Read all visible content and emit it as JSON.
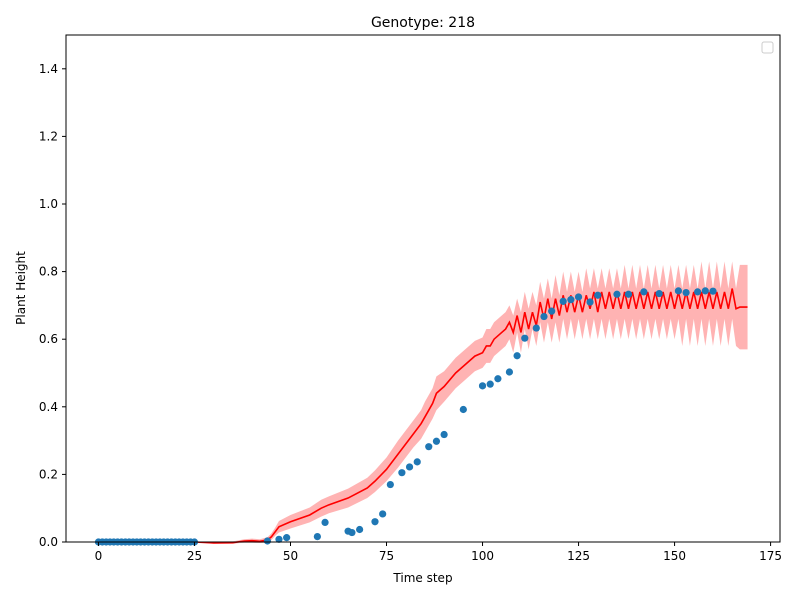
{
  "chart_data": {
    "type": "line",
    "title": "Genotype: 218",
    "xlabel": "Time step",
    "ylabel": "Plant Height",
    "xlim": [
      -8.45,
      177.45
    ],
    "ylim": [
      0,
      1.5
    ],
    "xticks": [
      0,
      25,
      50,
      75,
      100,
      125,
      150,
      175
    ],
    "yticks": [
      0.0,
      0.2,
      0.4,
      0.6,
      0.8,
      1.0,
      1.2,
      1.4
    ],
    "xtick_labels": [
      "0",
      "25",
      "50",
      "75",
      "100",
      "125",
      "150",
      "175"
    ],
    "ytick_labels": [
      "0.0",
      "0.2",
      "0.4",
      "0.6",
      "0.8",
      "1.0",
      "1.2",
      "1.4"
    ],
    "grid": false,
    "legend": {
      "placement": "top-right",
      "entries": []
    },
    "colors": {
      "observed": "#1f77b4",
      "prediction": "#ff0000",
      "band": "#ff9999"
    },
    "observed": {
      "x": [
        0,
        1,
        2,
        3,
        4,
        5,
        6,
        7,
        8,
        9,
        10,
        11,
        12,
        13,
        14,
        15,
        16,
        17,
        18,
        19,
        20,
        21,
        22,
        23,
        24,
        25,
        44,
        47,
        49,
        57,
        59,
        65,
        66,
        68,
        72,
        74,
        76,
        79,
        81,
        83,
        86,
        88,
        90,
        95,
        100,
        102,
        104,
        107,
        109,
        111,
        114,
        116,
        118,
        121,
        123,
        125,
        128,
        130,
        135,
        138,
        142,
        146,
        151,
        153,
        156,
        158,
        160
      ],
      "y": [
        0,
        0,
        0,
        0,
        0,
        0,
        0,
        0,
        0,
        0,
        0,
        0,
        0,
        0,
        0,
        0,
        0,
        0,
        0,
        0,
        0,
        0,
        0,
        0,
        0,
        0,
        0.003,
        0.008,
        0.013,
        0.016,
        0.058,
        0.032,
        0.028,
        0.037,
        0.06,
        0.083,
        0.17,
        0.205,
        0.222,
        0.237,
        0.282,
        0.298,
        0.318,
        0.392,
        0.462,
        0.467,
        0.483,
        0.503,
        0.551,
        0.603,
        0.633,
        0.667,
        0.683,
        0.712,
        0.717,
        0.725,
        0.71,
        0.73,
        0.733,
        0.733,
        0.74,
        0.735,
        0.743,
        0.738,
        0.74,
        0.743,
        0.742
      ]
    },
    "prediction": {
      "x": [
        0,
        5,
        10,
        15,
        20,
        25,
        30,
        35,
        38,
        40,
        42,
        44,
        45,
        46,
        47,
        50,
        55,
        58,
        60,
        65,
        70,
        72,
        75,
        78,
        80,
        82,
        84,
        85,
        86,
        87,
        88,
        90,
        93,
        95,
        98,
        100,
        101,
        102,
        103,
        104,
        105,
        106,
        107,
        108,
        109,
        110,
        111,
        112,
        113,
        114,
        115,
        116,
        117,
        118,
        119,
        120,
        121,
        122,
        123,
        124,
        125,
        126,
        127,
        128,
        129,
        130,
        131,
        132,
        133,
        134,
        135,
        136,
        137,
        138,
        139,
        140,
        141,
        142,
        143,
        144,
        145,
        146,
        147,
        148,
        149,
        150,
        151,
        152,
        153,
        154,
        155,
        156,
        157,
        158,
        159,
        160,
        161,
        162,
        163,
        164,
        165,
        166,
        167,
        168,
        169
      ],
      "y": [
        0,
        0,
        0,
        0,
        0,
        0,
        -0.003,
        -0.002,
        0.003,
        0.004,
        0.002,
        0.006,
        0.015,
        0.03,
        0.045,
        0.06,
        0.08,
        0.1,
        0.11,
        0.13,
        0.16,
        0.18,
        0.215,
        0.26,
        0.29,
        0.32,
        0.35,
        0.37,
        0.39,
        0.41,
        0.44,
        0.46,
        0.5,
        0.52,
        0.55,
        0.56,
        0.58,
        0.58,
        0.6,
        0.61,
        0.62,
        0.63,
        0.65,
        0.62,
        0.67,
        0.62,
        0.68,
        0.63,
        0.68,
        0.64,
        0.71,
        0.66,
        0.72,
        0.66,
        0.72,
        0.67,
        0.73,
        0.68,
        0.73,
        0.68,
        0.73,
        0.68,
        0.73,
        0.69,
        0.74,
        0.68,
        0.74,
        0.69,
        0.74,
        0.69,
        0.74,
        0.69,
        0.74,
        0.69,
        0.74,
        0.69,
        0.74,
        0.69,
        0.74,
        0.69,
        0.74,
        0.69,
        0.74,
        0.69,
        0.74,
        0.69,
        0.74,
        0.69,
        0.74,
        0.69,
        0.74,
        0.69,
        0.74,
        0.69,
        0.74,
        0.69,
        0.74,
        0.69,
        0.74,
        0.69,
        0.75,
        0.69,
        0.695,
        0.695,
        0.695
      ],
      "lower": [
        0,
        0,
        0,
        0,
        0,
        0,
        -0.005,
        -0.005,
        -0.002,
        -0.002,
        -0.003,
        -0.001,
        0.005,
        0.018,
        0.028,
        0.04,
        0.058,
        0.075,
        0.085,
        0.102,
        0.13,
        0.148,
        0.18,
        0.22,
        0.25,
        0.28,
        0.305,
        0.325,
        0.345,
        0.365,
        0.39,
        0.415,
        0.455,
        0.475,
        0.505,
        0.515,
        0.53,
        0.53,
        0.55,
        0.56,
        0.57,
        0.58,
        0.6,
        0.56,
        0.62,
        0.56,
        0.63,
        0.57,
        0.63,
        0.58,
        0.65,
        0.59,
        0.65,
        0.59,
        0.65,
        0.59,
        0.66,
        0.6,
        0.66,
        0.6,
        0.66,
        0.6,
        0.66,
        0.6,
        0.66,
        0.6,
        0.66,
        0.6,
        0.66,
        0.6,
        0.66,
        0.6,
        0.66,
        0.6,
        0.66,
        0.6,
        0.66,
        0.6,
        0.66,
        0.6,
        0.66,
        0.6,
        0.66,
        0.6,
        0.66,
        0.6,
        0.66,
        0.58,
        0.66,
        0.58,
        0.66,
        0.58,
        0.66,
        0.58,
        0.66,
        0.58,
        0.66,
        0.58,
        0.66,
        0.58,
        0.66,
        0.58,
        0.57,
        0.57,
        0.57
      ],
      "upper": [
        0,
        0,
        0,
        0,
        0,
        0,
        0.001,
        0.002,
        0.008,
        0.01,
        0.008,
        0.014,
        0.025,
        0.042,
        0.062,
        0.08,
        0.102,
        0.125,
        0.135,
        0.158,
        0.19,
        0.212,
        0.25,
        0.3,
        0.33,
        0.36,
        0.39,
        0.415,
        0.435,
        0.455,
        0.49,
        0.505,
        0.545,
        0.565,
        0.595,
        0.605,
        0.63,
        0.63,
        0.65,
        0.66,
        0.67,
        0.68,
        0.7,
        0.67,
        0.72,
        0.68,
        0.74,
        0.69,
        0.74,
        0.7,
        0.77,
        0.72,
        0.78,
        0.72,
        0.79,
        0.73,
        0.8,
        0.74,
        0.8,
        0.74,
        0.8,
        0.74,
        0.81,
        0.75,
        0.81,
        0.75,
        0.81,
        0.75,
        0.81,
        0.75,
        0.81,
        0.75,
        0.82,
        0.75,
        0.82,
        0.75,
        0.82,
        0.75,
        0.82,
        0.75,
        0.82,
        0.75,
        0.82,
        0.75,
        0.82,
        0.75,
        0.82,
        0.75,
        0.82,
        0.75,
        0.82,
        0.75,
        0.83,
        0.75,
        0.83,
        0.75,
        0.83,
        0.75,
        0.83,
        0.75,
        0.83,
        0.75,
        0.82,
        0.82,
        0.82
      ]
    }
  }
}
